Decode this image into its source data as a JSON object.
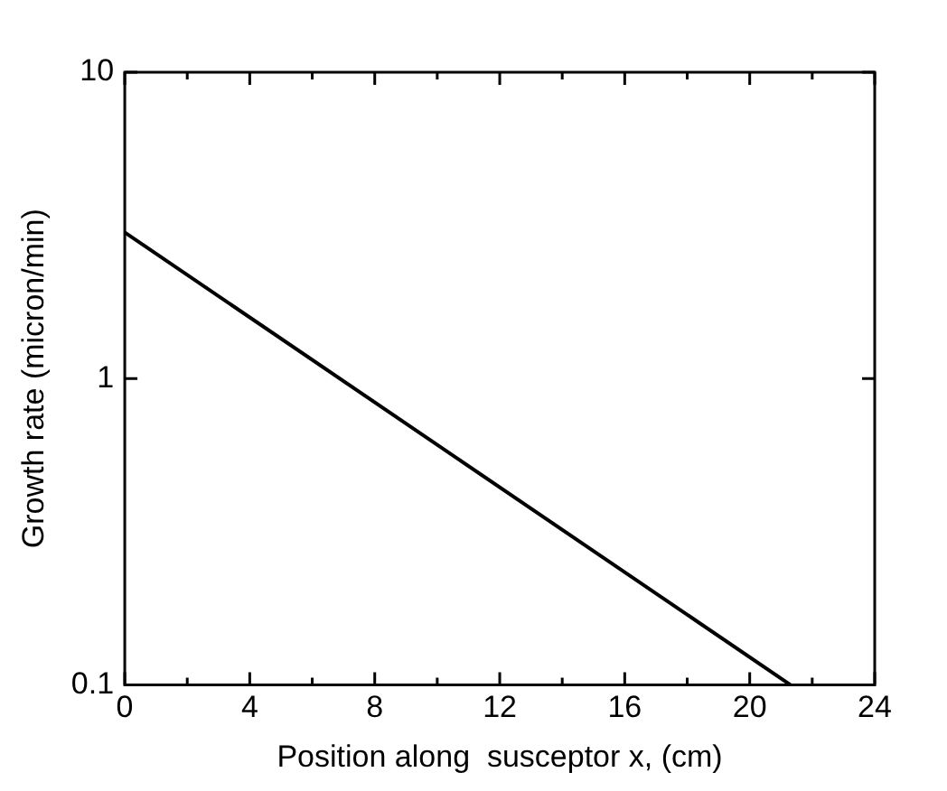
{
  "chart_data": {
    "type": "line",
    "xlabel": "Position along  susceptor x, (cm)",
    "ylabel": "Growth rate (micron/min)",
    "x": [
      0,
      21.3
    ],
    "series": [
      {
        "color": "#000000",
        "values": [
          3,
          0.1
        ]
      }
    ],
    "xlim": [
      0,
      24
    ],
    "xticks": [
      0,
      {
        "value": 2,
        "label": null
      },
      4,
      {
        "value": 6,
        "label": null
      },
      8,
      {
        "value": 10,
        "label": null
      },
      12,
      {
        "value": 14,
        "label": null
      },
      16,
      {
        "value": 18,
        "label": null
      },
      20,
      {
        "value": 22,
        "label": null
      },
      24
    ],
    "ylim": [
      0.1,
      10
    ],
    "yticks": [
      0.1,
      1,
      10
    ],
    "log": "y",
    "grid": false,
    "legend": false,
    "marker": "none",
    "line_style": "solid"
  }
}
